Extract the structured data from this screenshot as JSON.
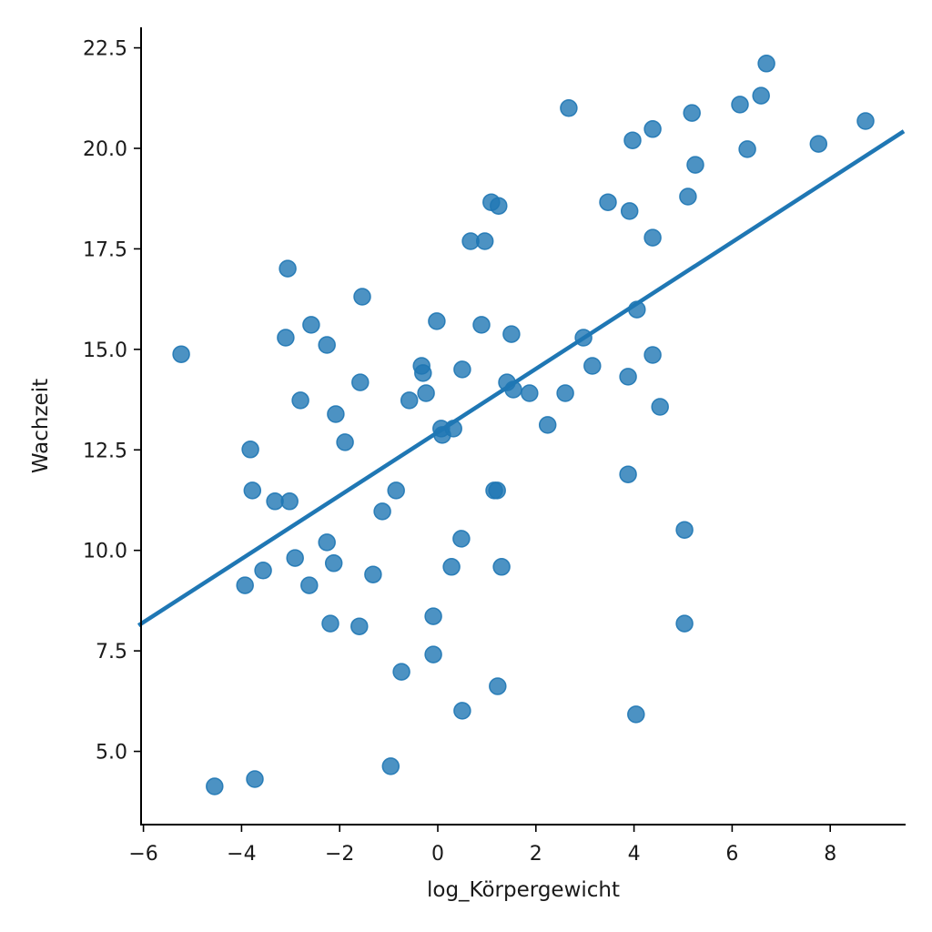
{
  "chart_data": {
    "type": "scatter",
    "title": "",
    "xlabel": "log_Körpergewicht",
    "ylabel": "Wachzeit",
    "xlim": [
      -6.1,
      9.5
    ],
    "ylim": [
      3.5,
      23.0
    ],
    "grid": false,
    "legend": null,
    "x_ticks": [
      -6,
      -4,
      -2,
      0,
      2,
      4,
      6,
      8
    ],
    "x_tick_labels": [
      "−6",
      "−4",
      "−2",
      "0",
      "2",
      "4",
      "6",
      "8"
    ],
    "y_ticks": [
      5.0,
      7.5,
      10.0,
      12.5,
      15.0,
      17.5,
      20.0,
      22.5
    ],
    "y_tick_labels": [
      "5.0",
      "7.5",
      "10.0",
      "12.5",
      "15.0",
      "17.5",
      "20.0",
      "22.5"
    ],
    "marker_color": "#1f77b4",
    "line_color": "#1f77b4",
    "regression_line": {
      "slope": 0.788,
      "intercept": 12.94,
      "x_start": -6.1,
      "x_end": 9.5
    },
    "points": [
      [
        -5.23,
        14.88
      ],
      [
        -4.55,
        4.13
      ],
      [
        -3.93,
        9.13
      ],
      [
        -3.82,
        12.51
      ],
      [
        -3.78,
        11.49
      ],
      [
        -3.73,
        4.31
      ],
      [
        -3.56,
        9.5
      ],
      [
        -3.32,
        11.22
      ],
      [
        -3.06,
        17.01
      ],
      [
        -3.1,
        15.29
      ],
      [
        -3.02,
        11.22
      ],
      [
        -2.91,
        9.81
      ],
      [
        -2.8,
        13.73
      ],
      [
        -2.62,
        9.13
      ],
      [
        -2.58,
        15.61
      ],
      [
        -2.26,
        15.11
      ],
      [
        -2.26,
        10.2
      ],
      [
        -2.19,
        8.18
      ],
      [
        -2.12,
        9.68
      ],
      [
        -2.08,
        13.39
      ],
      [
        -1.89,
        12.69
      ],
      [
        -1.6,
        8.11
      ],
      [
        -1.58,
        14.18
      ],
      [
        -1.54,
        16.31
      ],
      [
        -1.32,
        9.4
      ],
      [
        -1.13,
        10.97
      ],
      [
        -0.96,
        4.63
      ],
      [
        -0.85,
        11.49
      ],
      [
        -0.74,
        6.98
      ],
      [
        -0.58,
        13.73
      ],
      [
        -0.33,
        14.59
      ],
      [
        -0.3,
        14.41
      ],
      [
        -0.24,
        13.91
      ],
      [
        -0.09,
        8.36
      ],
      [
        -0.09,
        7.41
      ],
      [
        -0.02,
        15.7
      ],
      [
        0.07,
        13.03
      ],
      [
        0.09,
        12.87
      ],
      [
        0.32,
        13.03
      ],
      [
        0.28,
        9.59
      ],
      [
        0.5,
        14.5
      ],
      [
        0.5,
        6.01
      ],
      [
        0.48,
        10.29
      ],
      [
        0.67,
        17.69
      ],
      [
        0.96,
        17.69
      ],
      [
        0.89,
        15.61
      ],
      [
        1.09,
        18.66
      ],
      [
        1.24,
        18.57
      ],
      [
        1.15,
        11.49
      ],
      [
        1.21,
        11.49
      ],
      [
        1.22,
        6.62
      ],
      [
        1.3,
        9.59
      ],
      [
        1.41,
        14.18
      ],
      [
        1.5,
        15.38
      ],
      [
        1.54,
        14.0
      ],
      [
        1.87,
        13.91
      ],
      [
        2.24,
        13.12
      ],
      [
        2.6,
        13.91
      ],
      [
        2.67,
        21.0
      ],
      [
        2.97,
        15.29
      ],
      [
        3.15,
        14.59
      ],
      [
        3.47,
        18.66
      ],
      [
        3.88,
        11.89
      ],
      [
        3.88,
        14.32
      ],
      [
        3.91,
        18.44
      ],
      [
        3.97,
        20.2
      ],
      [
        4.06,
        15.99
      ],
      [
        4.04,
        5.92
      ],
      [
        4.38,
        20.48
      ],
      [
        4.38,
        17.78
      ],
      [
        4.38,
        14.86
      ],
      [
        4.53,
        13.57
      ],
      [
        5.03,
        10.51
      ],
      [
        5.03,
        8.18
      ],
      [
        5.1,
        18.8
      ],
      [
        5.18,
        20.88
      ],
      [
        5.25,
        19.59
      ],
      [
        6.16,
        21.09
      ],
      [
        6.31,
        19.98
      ],
      [
        6.59,
        21.31
      ],
      [
        6.7,
        22.11
      ],
      [
        7.76,
        20.11
      ],
      [
        8.72,
        20.68
      ]
    ]
  }
}
